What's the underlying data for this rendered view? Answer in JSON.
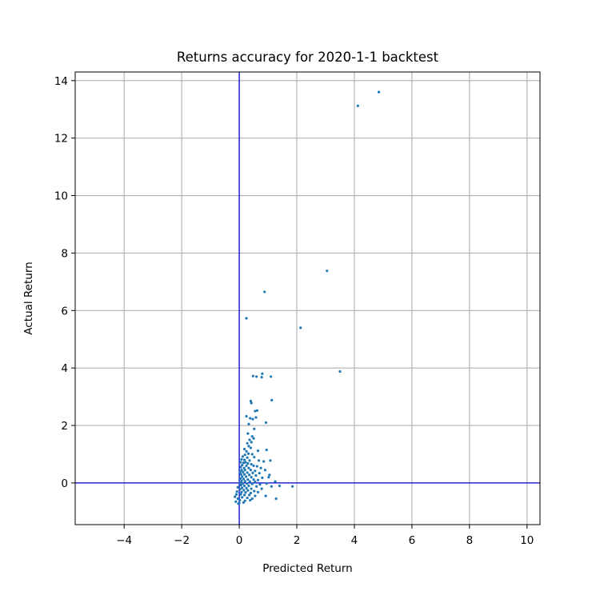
{
  "chart_data": {
    "type": "scatter",
    "title": "Returns accuracy for 2020-1-1 backtest",
    "xlabel": "Predicted Return",
    "ylabel": "Actual Return",
    "xlim": [
      -5.7,
      10.45
    ],
    "ylim": [
      -1.45,
      14.3
    ],
    "x_ticks": [
      -4,
      -2,
      0,
      2,
      4,
      6,
      8,
      10
    ],
    "y_ticks": [
      0,
      2,
      4,
      6,
      8,
      10,
      12,
      14
    ],
    "x_tick_labels": [
      "−4",
      "−2",
      "0",
      "2",
      "4",
      "6",
      "8",
      "10"
    ],
    "y_tick_labels": [
      "0",
      "2",
      "4",
      "6",
      "8",
      "10",
      "12",
      "14"
    ],
    "grid": true,
    "reference_lines": {
      "x": 0,
      "y": 0,
      "color": "#0000cc"
    },
    "point_color": "#1f77b4",
    "frame_color": "#000000",
    "grid_color": "#b0b0b0",
    "points": [
      {
        "x": 4.85,
        "y": 13.6
      },
      {
        "x": 4.12,
        "y": 13.12
      },
      {
        "x": 3.05,
        "y": 7.38
      },
      {
        "x": 0.88,
        "y": 6.65
      },
      {
        "x": 0.25,
        "y": 5.73
      },
      {
        "x": 2.13,
        "y": 5.4
      },
      {
        "x": 3.5,
        "y": 3.88
      },
      {
        "x": 0.48,
        "y": 3.72
      },
      {
        "x": 0.6,
        "y": 3.7
      },
      {
        "x": 0.8,
        "y": 3.8
      },
      {
        "x": 0.78,
        "y": 3.68
      },
      {
        "x": 1.1,
        "y": 3.7
      },
      {
        "x": 1.13,
        "y": 2.88
      },
      {
        "x": 0.4,
        "y": 2.85
      },
      {
        "x": 0.42,
        "y": 2.78
      },
      {
        "x": 0.55,
        "y": 2.5
      },
      {
        "x": 0.62,
        "y": 2.52
      },
      {
        "x": 0.25,
        "y": 2.32
      },
      {
        "x": 0.38,
        "y": 2.25
      },
      {
        "x": 0.47,
        "y": 2.22
      },
      {
        "x": 0.58,
        "y": 2.28
      },
      {
        "x": 0.93,
        "y": 2.1
      },
      {
        "x": 0.33,
        "y": 2.05
      },
      {
        "x": 0.52,
        "y": 1.88
      },
      {
        "x": 0.3,
        "y": 1.72
      },
      {
        "x": 0.45,
        "y": 1.62
      },
      {
        "x": 0.5,
        "y": 1.55
      },
      {
        "x": 0.36,
        "y": 1.5
      },
      {
        "x": 0.42,
        "y": 1.42
      },
      {
        "x": 0.28,
        "y": 1.38
      },
      {
        "x": 0.33,
        "y": 1.28
      },
      {
        "x": 0.4,
        "y": 1.22
      },
      {
        "x": 0.18,
        "y": 1.18
      },
      {
        "x": 0.95,
        "y": 1.15
      },
      {
        "x": 0.65,
        "y": 1.12
      },
      {
        "x": 0.25,
        "y": 1.1
      },
      {
        "x": 0.32,
        "y": 1.02
      },
      {
        "x": 0.45,
        "y": 1.0
      },
      {
        "x": 0.2,
        "y": 0.98
      },
      {
        "x": 0.12,
        "y": 0.92
      },
      {
        "x": 0.52,
        "y": 0.9
      },
      {
        "x": 0.28,
        "y": 0.88
      },
      {
        "x": 0.08,
        "y": 0.82
      },
      {
        "x": 0.18,
        "y": 0.8
      },
      {
        "x": 0.36,
        "y": 0.78
      },
      {
        "x": 0.68,
        "y": 0.78
      },
      {
        "x": 0.85,
        "y": 0.75
      },
      {
        "x": 1.08,
        "y": 0.78
      },
      {
        "x": 0.05,
        "y": 0.72
      },
      {
        "x": 0.15,
        "y": 0.7
      },
      {
        "x": 0.22,
        "y": 0.72
      },
      {
        "x": 0.3,
        "y": 0.68
      },
      {
        "x": 0.42,
        "y": 0.65
      },
      {
        "x": 0.1,
        "y": 0.62
      },
      {
        "x": 0.25,
        "y": 0.6
      },
      {
        "x": 0.5,
        "y": 0.6
      },
      {
        "x": 0.62,
        "y": 0.58
      },
      {
        "x": 0.05,
        "y": 0.55
      },
      {
        "x": 0.17,
        "y": 0.52
      },
      {
        "x": 0.33,
        "y": 0.52
      },
      {
        "x": 0.75,
        "y": 0.52
      },
      {
        "x": 0.08,
        "y": 0.45
      },
      {
        "x": 0.2,
        "y": 0.45
      },
      {
        "x": 0.4,
        "y": 0.45
      },
      {
        "x": 0.55,
        "y": 0.42
      },
      {
        "x": 0.9,
        "y": 0.45
      },
      {
        "x": 0.03,
        "y": 0.38
      },
      {
        "x": 0.13,
        "y": 0.38
      },
      {
        "x": 0.28,
        "y": 0.36
      },
      {
        "x": 0.47,
        "y": 0.35
      },
      {
        "x": 0.7,
        "y": 0.34
      },
      {
        "x": 0.06,
        "y": 0.3
      },
      {
        "x": 0.18,
        "y": 0.3
      },
      {
        "x": 0.35,
        "y": 0.28
      },
      {
        "x": 0.58,
        "y": 0.26
      },
      {
        "x": 1.05,
        "y": 0.28
      },
      {
        "x": 0.1,
        "y": 0.22
      },
      {
        "x": 0.24,
        "y": 0.22
      },
      {
        "x": 0.42,
        "y": 0.2
      },
      {
        "x": 0.8,
        "y": 0.18
      },
      {
        "x": 1.02,
        "y": 0.2
      },
      {
        "x": 0.04,
        "y": 0.15
      },
      {
        "x": 0.15,
        "y": 0.14
      },
      {
        "x": 0.3,
        "y": 0.12
      },
      {
        "x": 0.5,
        "y": 0.12
      },
      {
        "x": 0.65,
        "y": 0.1
      },
      {
        "x": 0.08,
        "y": 0.07
      },
      {
        "x": 0.2,
        "y": 0.06
      },
      {
        "x": 0.37,
        "y": 0.05
      },
      {
        "x": 0.55,
        "y": 0.04
      },
      {
        "x": 1.25,
        "y": 0.05
      },
      {
        "x": 0.02,
        "y": 0.0
      },
      {
        "x": 0.12,
        "y": -0.02
      },
      {
        "x": 0.27,
        "y": -0.02
      },
      {
        "x": 0.45,
        "y": -0.03
      },
      {
        "x": 0.72,
        "y": -0.05
      },
      {
        "x": 0.95,
        "y": -0.02
      },
      {
        "x": 0.06,
        "y": -0.08
      },
      {
        "x": 0.18,
        "y": -0.1
      },
      {
        "x": 0.33,
        "y": -0.1
      },
      {
        "x": 0.6,
        "y": -0.12
      },
      {
        "x": 1.12,
        "y": -0.12
      },
      {
        "x": 1.4,
        "y": -0.1
      },
      {
        "x": 1.85,
        "y": -0.12
      },
      {
        "x": -0.05,
        "y": -0.15
      },
      {
        "x": 0.1,
        "y": -0.17
      },
      {
        "x": 0.25,
        "y": -0.18
      },
      {
        "x": 0.42,
        "y": -0.2
      },
      {
        "x": 0.78,
        "y": -0.2
      },
      {
        "x": 0.03,
        "y": -0.22
      },
      {
        "x": 0.16,
        "y": -0.25
      },
      {
        "x": 0.3,
        "y": -0.26
      },
      {
        "x": 0.52,
        "y": -0.28
      },
      {
        "x": -0.08,
        "y": -0.3
      },
      {
        "x": 0.08,
        "y": -0.32
      },
      {
        "x": 0.22,
        "y": -0.33
      },
      {
        "x": 0.4,
        "y": -0.35
      },
      {
        "x": 0.65,
        "y": -0.32
      },
      {
        "x": -0.1,
        "y": -0.4
      },
      {
        "x": 0.05,
        "y": -0.4
      },
      {
        "x": 0.18,
        "y": -0.42
      },
      {
        "x": 0.35,
        "y": -0.42
      },
      {
        "x": 0.55,
        "y": -0.45
      },
      {
        "x": 0.92,
        "y": -0.45
      },
      {
        "x": -0.15,
        "y": -0.48
      },
      {
        "x": 0.1,
        "y": -0.5
      },
      {
        "x": 0.28,
        "y": -0.52
      },
      {
        "x": 0.45,
        "y": -0.55
      },
      {
        "x": 1.28,
        "y": -0.55
      },
      {
        "x": -0.05,
        "y": -0.55
      },
      {
        "x": 0.02,
        "y": -0.6
      },
      {
        "x": 0.2,
        "y": -0.62
      },
      {
        "x": 0.38,
        "y": -0.6
      },
      {
        "x": -0.12,
        "y": -0.65
      },
      {
        "x": 0.0,
        "y": -0.7
      },
      {
        "x": 0.15,
        "y": -0.68
      },
      {
        "x": -0.03,
        "y": -0.72
      }
    ]
  }
}
